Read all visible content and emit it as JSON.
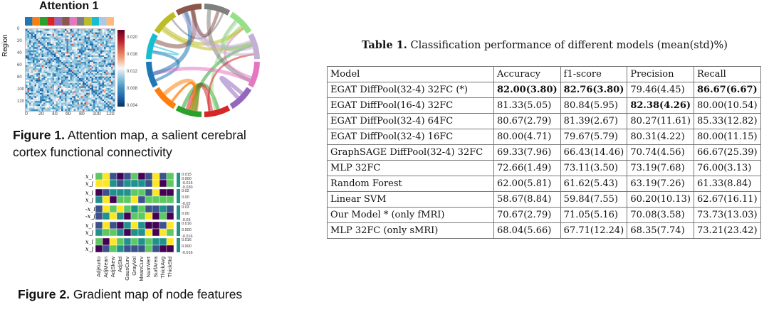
{
  "figure1": {
    "panel_title": "Attention 1",
    "y_axis_label": "Region",
    "y_ticks": [
      "0",
      "20",
      "40",
      "60",
      "80",
      "100",
      "120"
    ],
    "x_ticks": [
      "0",
      "20",
      "40",
      "60",
      "80",
      "100",
      "120"
    ],
    "colorbar_ticks": [
      "0.020",
      "0.016",
      "0.012",
      "0.008",
      "0.004"
    ],
    "caption_label": "Figure 1.",
    "caption_text": "Attention map, a salient cerebral cortex functional connectivity",
    "strip_colors": [
      "#1f77b4",
      "#ff7f0e",
      "#2ca02c",
      "#d62728",
      "#9467bd",
      "#8c564b",
      "#e377c2",
      "#7f7f7f",
      "#bcbd22",
      "#17becf",
      "#aec7e8",
      "#ffbb78"
    ],
    "chord_colors": [
      "#e377c2",
      "#9467bd",
      "#d62728",
      "#2ca02c",
      "#ff7f0e",
      "#1f77b4",
      "#17becf",
      "#bcbd22",
      "#8c564b",
      "#7f7f7f",
      "#98df8a",
      "#c5b0d5"
    ]
  },
  "figure2": {
    "row_labels": [
      "x_i",
      "x_j",
      "x_i",
      "x_j",
      "-x_i",
      "-x_j",
      "x_i",
      "x_j",
      "x_i",
      "x_j"
    ],
    "colorbars": [
      [
        "0.015",
        "0.000",
        "-0.015",
        "-0.030"
      ],
      [
        "0.02",
        "0.00",
        "-0.02"
      ],
      [
        "0.03",
        "0.00",
        "-0.03"
      ],
      [
        "0.016",
        "0.000",
        "-0.016"
      ],
      [
        "0.016",
        "0.000",
        "-0.016"
      ]
    ],
    "x_labels": [
      "AdjKurto",
      "AdjMean",
      "AdjSkew",
      "AdjStd",
      "GausCurv",
      "GrayVol",
      "MeanCurv",
      "NumVert",
      "SurfArea",
      "ThickAvg",
      "ThickStd"
    ],
    "caption_label": "Figure 2.",
    "caption_text": "Gradient map of node features"
  },
  "table": {
    "title_label": "Table 1.",
    "title_text": "Classification performance of different models (mean(std)%)",
    "headers": [
      "Model",
      "Accuracy",
      "f1-score",
      "Precision",
      "Recall"
    ],
    "rows": [
      {
        "model": "EGAT DiffPool(32-4) 32FC (*)",
        "accuracy": "82.00(3.80)",
        "f1": "82.76(3.80)",
        "precision": "79.46(4.45)",
        "recall": "86.67(6.67)",
        "bold": [
          "accuracy",
          "f1",
          "recall"
        ]
      },
      {
        "model": "EGAT DiffPool(16-4) 32FC",
        "accuracy": "81.33(5.05)",
        "f1": "80.84(5.95)",
        "precision": "82.38(4.26)",
        "recall": "80.00(10.54)",
        "bold": [
          "precision"
        ]
      },
      {
        "model": "EGAT DiffPool(32-4) 64FC",
        "accuracy": "80.67(2.79)",
        "f1": "81.39(2.67)",
        "precision": "80.27(11.61)",
        "recall": "85.33(12.82)",
        "bold": []
      },
      {
        "model": "EGAT DiffPool(32-4) 16FC",
        "accuracy": "80.00(4.71)",
        "f1": "79.67(5.79)",
        "precision": "80.31(4.22)",
        "recall": "80.00(11.15)",
        "bold": []
      },
      {
        "model": "GraphSAGE DiffPool(32-4) 32FC",
        "accuracy": "69.33(7.96)",
        "f1": "66.43(14.46)",
        "precision": "70.74(4.56)",
        "recall": "66.67(25.39)",
        "bold": []
      },
      {
        "model": "MLP 32FC",
        "accuracy": "72.66(1.49)",
        "f1": "73.11(3.50)",
        "precision": "73.19(7.68)",
        "recall": "76.00(3.13)",
        "bold": []
      },
      {
        "model": "Random Forest",
        "accuracy": "62.00(5.81)",
        "f1": "61.62(5.43)",
        "precision": "63.19(7.26)",
        "recall": "61.33(8.84)",
        "bold": []
      },
      {
        "model": "Linear SVM",
        "accuracy": "58.67(8.84)",
        "f1": "59.84(7.55)",
        "precision": "60.20(10.13)",
        "recall": "62.67(16.11)",
        "bold": []
      },
      {
        "model": "Our Model * (only fMRI)",
        "accuracy": "70.67(2.79)",
        "f1": "71.05(5.16)",
        "precision": "70.08(3.58)",
        "recall": "73.73(13.03)",
        "bold": []
      },
      {
        "model": "MLP 32FC (only sMRI)",
        "accuracy": "68.04(5.66)",
        "f1": "67.71(12.24)",
        "precision": "68.35(7.74)",
        "recall": "73.21(23.42)",
        "bold": []
      }
    ]
  }
}
